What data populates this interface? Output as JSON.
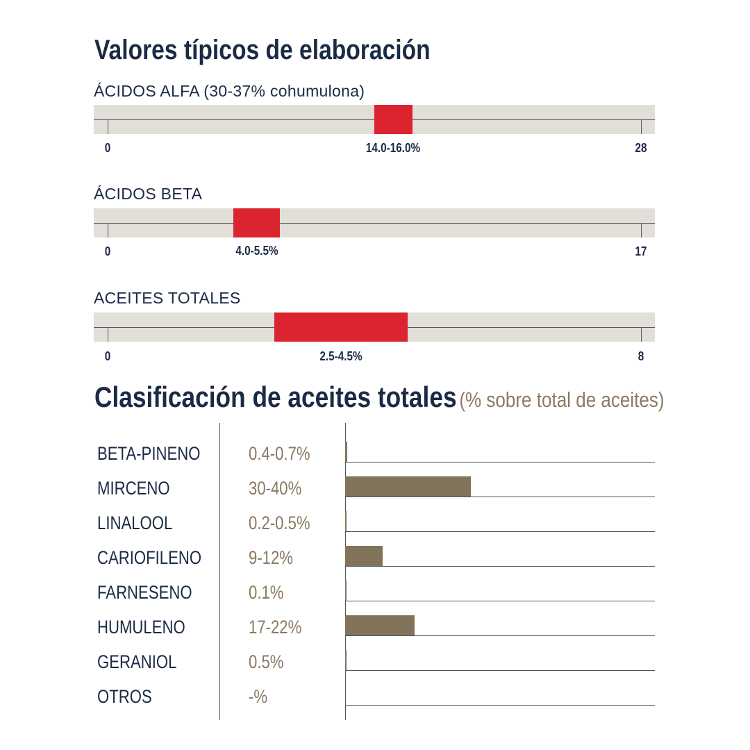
{
  "page": {
    "title": "Valores típicos de elaboración"
  },
  "ranges": [
    {
      "label": "ÁCIDOS ALFA (30-37% cohumulona)",
      "min": 0,
      "max": 28,
      "low": 14.0,
      "high": 16.0,
      "min_label": "0",
      "max_label": "28",
      "range_label": "14.0-16.0%"
    },
    {
      "label": "ÁCIDOS BETA",
      "min": 0,
      "max": 17,
      "low": 4.0,
      "high": 5.5,
      "min_label": "0",
      "max_label": "17",
      "range_label": "4.0-5.5%"
    },
    {
      "label": "ACEITES TOTALES",
      "min": 0,
      "max": 8,
      "low": 2.5,
      "high": 4.5,
      "min_label": "0",
      "max_label": "8",
      "range_label": "2.5-4.5%"
    }
  ],
  "oils_section": {
    "title": "Clasificación de aceites totales",
    "subtitle": "(% sobre total de aceites)"
  },
  "colors": {
    "navy": "#1b2a45",
    "red": "#dc2430",
    "track": "#e2dfd8",
    "tan": "#8b7a60",
    "bar_brown": "#82745b"
  },
  "chart_data": [
    {
      "type": "bar",
      "title": "Valores típicos de elaboración",
      "orientation": "horizontal-range",
      "series": [
        {
          "name": "ÁCIDOS ALFA (30-37% cohumulona)",
          "range": [
            14.0,
            16.0
          ],
          "axis": [
            0,
            28
          ]
        },
        {
          "name": "ÁCIDOS BETA",
          "range": [
            4.0,
            5.5
          ],
          "axis": [
            0,
            17
          ]
        },
        {
          "name": "ACEITES TOTALES",
          "range": [
            2.5,
            4.5
          ],
          "axis": [
            0,
            8
          ]
        }
      ]
    },
    {
      "type": "bar",
      "title": "Clasificación de aceites totales",
      "subtitle": "(% sobre total de aceites)",
      "orientation": "horizontal",
      "xlim": [
        0,
        100
      ],
      "categories": [
        "BETA-PINENO",
        "MIRCENO",
        "LINALOOL",
        "CARIOFILENO",
        "FARNESENO",
        "HUMULENO",
        "GERANIOL",
        "OTROS"
      ],
      "value_labels": [
        "0.4-0.7%",
        "30-40%",
        "0.2-0.5%",
        "9-12%",
        "0.1%",
        "17-22%",
        "0.5%",
        "-%"
      ],
      "values": [
        0.7,
        40,
        0.5,
        12,
        0.1,
        22,
        0.5,
        0
      ]
    }
  ]
}
